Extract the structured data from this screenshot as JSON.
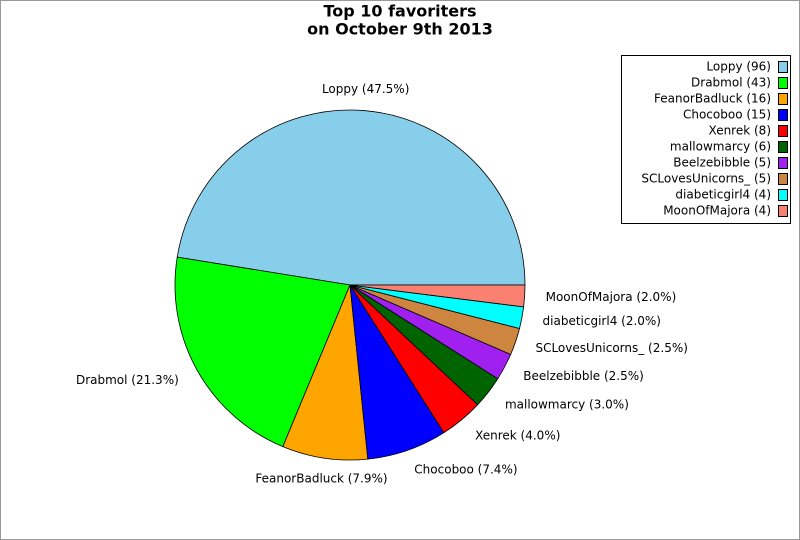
{
  "chart_data": {
    "type": "pie",
    "title": [
      "Top 10 favoriters",
      "on October 9th 2013"
    ],
    "categories": [
      "Loppy (96)",
      "Drabmol (43)",
      "FeanorBadluck (16)",
      "Chocoboo (15)",
      "Xenrek (8)",
      "mallowmarcy (6)",
      "Beelzebibble (5)",
      "SCLovesUnicorns_ (5)",
      "diabeticgirl4 (4)",
      "MoonOfMajora (4)"
    ],
    "values": [
      47.5,
      21.3,
      7.9,
      7.4,
      4.0,
      3.0,
      2.5,
      2.5,
      2.0,
      2.0
    ],
    "value_labels": [
      "Loppy (47.5%)",
      "Drabmol (21.3%)",
      "FeanorBadluck (7.9%)",
      "Chocoboo (7.4%)",
      "Xenrek (4.0%)",
      "mallowmarcy (3.0%)",
      "Beelzebibble (2.5%)",
      "SCLovesUnicorns_ (2.5%)",
      "diabeticgirl4 (2.0%)",
      "MoonOfMajora (2.0%)"
    ],
    "colors": [
      "#87ceeb",
      "#00ff00",
      "#ffa500",
      "#0000ff",
      "#ff0000",
      "#006400",
      "#a020f0",
      "#cd853f",
      "#00ffff",
      "#fa8072"
    ],
    "legend": "upper right"
  }
}
